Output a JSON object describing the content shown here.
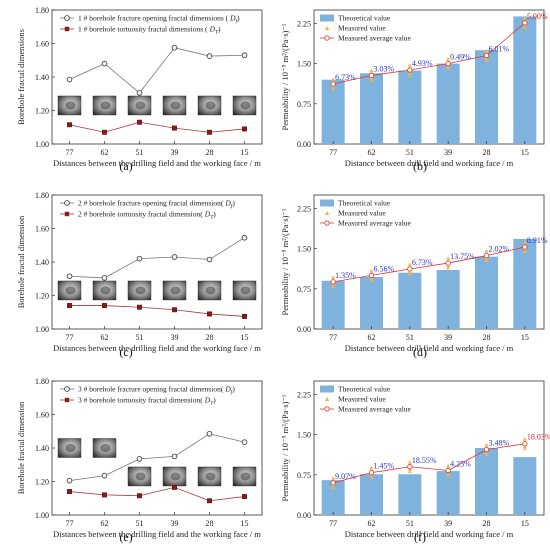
{
  "chart_data": [
    {
      "id": "a",
      "type": "line",
      "panel_label": "(a)",
      "xlabel": "Distances between the drilling field and the working face / m",
      "ylabel": "Borehole fractal dimensions",
      "categories": [
        "77",
        "62",
        "51",
        "39",
        "28",
        "15"
      ],
      "ylim": [
        1.0,
        1.8
      ],
      "yticks": [
        "1.00",
        "1.20",
        "1.40",
        "1.60",
        "1.80"
      ],
      "legend_position": "top-left",
      "legend": [
        "1 # borehole fracture opening fractal dimensions (",
        "1 # borehole tortuosity fractal dimensions ("
      ],
      "legend_symbols": [
        "D",
        "D"
      ],
      "legend_subs": [
        "f",
        "T"
      ],
      "legend_close": [
        ")",
        ")"
      ],
      "series": [
        {
          "name": "1 # borehole fracture opening fractal dimensions ( Df)",
          "marker": "circle",
          "color": "#555555",
          "values": [
            1.385,
            1.48,
            1.305,
            1.575,
            1.525,
            1.53
          ]
        },
        {
          "name": "1 # borehole tortuosity fractal dimensions ( DT)",
          "marker": "square",
          "color": "#8b1a1a",
          "values": [
            1.115,
            1.07,
            1.13,
            1.095,
            1.07,
            1.09
          ]
        }
      ],
      "has_photos": true,
      "photo_rows": [
        1,
        1,
        1,
        1,
        1,
        1
      ]
    },
    {
      "id": "b",
      "type": "bar",
      "panel_label": "(b)",
      "xlabel": "Distance between drill field and working face / m",
      "ylabel": "Permeability / 10⁻⁵ m²/(Pa·s)⁻¹",
      "categories": [
        "77",
        "62",
        "51",
        "39",
        "28",
        "15"
      ],
      "ylim": [
        0,
        2.5
      ],
      "yticks": [
        "0.00",
        "0.75",
        "1.50",
        "2.25"
      ],
      "ytick_values": [
        0,
        0.75,
        1.5,
        2.25
      ],
      "legend": [
        "Theoretical value",
        "Measured value",
        "Measured average value"
      ],
      "theoretical": [
        1.2,
        1.32,
        1.37,
        1.5,
        1.75,
        2.38
      ],
      "measured_average": [
        1.12,
        1.28,
        1.38,
        1.5,
        1.65,
        2.26
      ],
      "errors": [
        {
          "text": "6.73%",
          "color": "#2233cc"
        },
        {
          "text": "3.03%",
          "color": "#2233cc"
        },
        {
          "text": "4.93%",
          "color": "#2233cc"
        },
        {
          "text": "0.49%",
          "color": "#2233cc"
        },
        {
          "text": "6.01%",
          "color": "#2233cc"
        },
        {
          "text": "5.00%",
          "color": "#d62020"
        }
      ]
    },
    {
      "id": "c",
      "type": "line",
      "panel_label": "(c)",
      "xlabel": "Distances between the drilling field and the working face / m",
      "ylabel": "Borehole fractal dimension",
      "categories": [
        "77",
        "62",
        "51",
        "39",
        "28",
        "15"
      ],
      "ylim": [
        1.0,
        1.8
      ],
      "yticks": [
        "1.00",
        "1.20",
        "1.40",
        "1.60",
        "1.80"
      ],
      "legend_position": "top-left",
      "legend": [
        "2 # borehole fracture opening fractal dimension(",
        "2 # borehole tortuosity fractal dimension("
      ],
      "legend_symbols": [
        "D",
        "D"
      ],
      "legend_subs": [
        "f",
        "T"
      ],
      "legend_close": [
        ")",
        ")"
      ],
      "series": [
        {
          "name": "2 # borehole fracture opening fractal dimension( Df)",
          "marker": "circle",
          "color": "#555555",
          "values": [
            1.315,
            1.305,
            1.42,
            1.43,
            1.415,
            1.545
          ]
        },
        {
          "name": "2 # borehole tortuosity fractal dimension( DT)",
          "marker": "square",
          "color": "#8b1a1a",
          "values": [
            1.14,
            1.14,
            1.13,
            1.115,
            1.09,
            1.075
          ]
        }
      ],
      "has_photos": true,
      "photo_rows": [
        1,
        1,
        1,
        1,
        1,
        1
      ]
    },
    {
      "id": "d",
      "type": "bar",
      "panel_label": "(d)",
      "xlabel": "Distance between drill field and working face / m",
      "ylabel": "Permeability / 10⁻⁵ m²/(Pa·s)⁻¹",
      "categories": [
        "77",
        "62",
        "51",
        "39",
        "28",
        "15"
      ],
      "ylim": [
        0,
        2.5
      ],
      "yticks": [
        "0.00",
        "0.75",
        "1.50",
        "2.25"
      ],
      "ytick_values": [
        0,
        0.75,
        1.5,
        2.25
      ],
      "legend": [
        "Theoretical value",
        "Measured value",
        "Measured average value"
      ],
      "theoretical": [
        0.9,
        0.97,
        1.05,
        1.1,
        1.35,
        1.68
      ],
      "measured_average": [
        0.88,
        1.0,
        1.12,
        1.23,
        1.37,
        1.53
      ],
      "errors": [
        {
          "text": "1.35%",
          "color": "#2233cc"
        },
        {
          "text": "6.56%",
          "color": "#2233cc"
        },
        {
          "text": "6.73%",
          "color": "#2233cc"
        },
        {
          "text": "13.75%",
          "color": "#2233cc"
        },
        {
          "text": "2.02%",
          "color": "#2233cc"
        },
        {
          "text": "8.91%",
          "color": "#2233cc"
        }
      ]
    },
    {
      "id": "e",
      "type": "line",
      "panel_label": "(e)",
      "xlabel": "Distances between the drilling field and the working face / m",
      "ylabel": "Borehole fractal dimension",
      "categories": [
        "77",
        "62",
        "51",
        "39",
        "28",
        "15"
      ],
      "ylim": [
        1.0,
        1.8
      ],
      "yticks": [
        "1.00",
        "1.20",
        "1.40",
        "1.60",
        "1.80"
      ],
      "legend_position": "top-left",
      "legend": [
        "3 # borehole fracture opening fractal dimension(",
        "3 # borehole tortuosity fractal dimension("
      ],
      "legend_symbols": [
        "D",
        "D"
      ],
      "legend_subs": [
        "f",
        "T"
      ],
      "legend_close": [
        ")",
        ")"
      ],
      "series": [
        {
          "name": "3 # borehole fracture opening fractal dimension( Df)",
          "marker": "circle",
          "color": "#555555",
          "values": [
            1.205,
            1.235,
            1.335,
            1.35,
            1.485,
            1.435
          ]
        },
        {
          "name": "3 # borehole tortuosity fractal dimension( DT)",
          "marker": "square",
          "color": "#8b1a1a",
          "values": [
            1.14,
            1.12,
            1.115,
            1.165,
            1.085,
            1.11
          ]
        }
      ],
      "has_photos": true,
      "photo_rows": [
        0,
        0,
        1,
        1,
        1,
        1
      ]
    },
    {
      "id": "f",
      "type": "bar",
      "panel_label": "(f)",
      "xlabel": "Distance between drill field and working face / m",
      "ylabel": "Permeability / 10⁻⁵ m²/(Pa·s)⁻¹",
      "categories": [
        "77",
        "62",
        "51",
        "39",
        "28",
        "15"
      ],
      "ylim": [
        0,
        2.5
      ],
      "yticks": [
        "0.00",
        "0.75",
        "1.50",
        "2.25"
      ],
      "ytick_values": [
        0,
        0.75,
        1.5,
        2.25
      ],
      "legend": [
        "Theoretical value",
        "Measured value",
        "Measured average value"
      ],
      "theoretical": [
        0.65,
        0.76,
        0.76,
        0.82,
        1.25,
        1.08
      ],
      "measured_average": [
        0.6,
        0.79,
        0.9,
        0.83,
        1.22,
        1.33
      ],
      "errors": [
        {
          "text": "9.07%",
          "color": "#2233cc"
        },
        {
          "text": "1.45%",
          "color": "#2233cc"
        },
        {
          "text": "18.55%",
          "color": "#2233cc"
        },
        {
          "text": "4.25%",
          "color": "#2233cc"
        },
        {
          "text": "3.48%",
          "color": "#2233cc"
        },
        {
          "text": "18.03%",
          "color": "#d62020"
        }
      ]
    }
  ],
  "colors": {
    "bar": "#7fb2dc",
    "measured": "#f0b64a",
    "average": "#e8352a",
    "line_gray": "#555555",
    "line_red": "#8b1a1a"
  }
}
